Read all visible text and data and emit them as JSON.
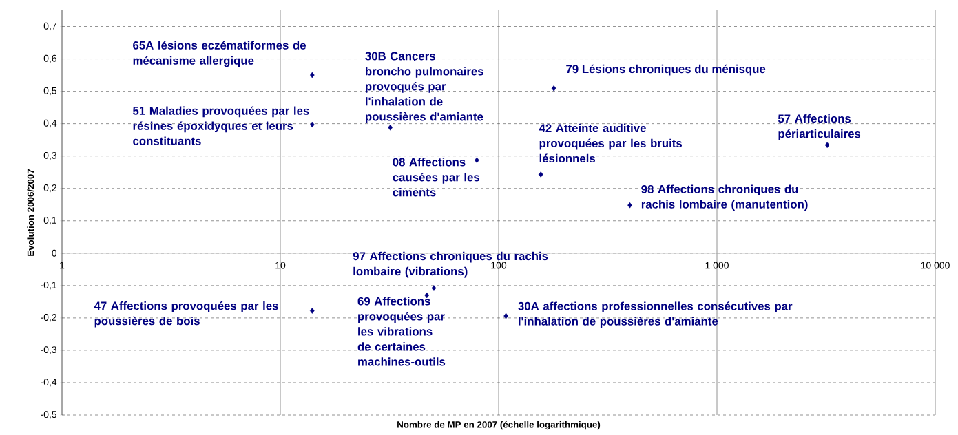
{
  "chart_data": {
    "type": "scatter",
    "xlabel": "Nombre de MP en 2007 (échelle logarithmique)",
    "ylabel": "Evolution 2006/2007",
    "x": [
      14,
      14,
      31.9,
      179,
      79.5,
      156,
      399,
      3200,
      14,
      50.5,
      46.9,
      108
    ],
    "values": [
      0.55,
      0.397,
      0.388,
      0.509,
      0.287,
      0.243,
      0.148,
      0.334,
      -0.178,
      -0.108,
      -0.13,
      -0.194
    ],
    "color": "#000080",
    "marker": "diamond",
    "log": "x",
    "grid": true,
    "xlim": [
      1,
      10000
    ],
    "ylim": [
      -0.5,
      0.75
    ],
    "xticks": [
      1,
      10,
      100,
      {
        "value": 1000,
        "label": "1 000"
      },
      {
        "value": 10000,
        "label": "10 000"
      }
    ],
    "yticks": [
      {
        "value": -0.5,
        "label": "-0,5"
      },
      {
        "value": -0.4,
        "label": "-0,4"
      },
      {
        "value": -0.3,
        "label": "-0,3"
      },
      {
        "value": -0.2,
        "label": "-0,2"
      },
      {
        "value": -0.1,
        "label": "-0,1"
      },
      0,
      {
        "value": 0.1,
        "label": "0,1"
      },
      {
        "value": 0.2,
        "label": "0,2"
      },
      {
        "value": 0.3,
        "label": "0,3"
      },
      {
        "value": 0.4,
        "label": "0,4"
      },
      {
        "value": 0.5,
        "label": "0,5"
      },
      {
        "value": 0.6,
        "label": "0,6"
      },
      {
        "value": 0.7,
        "label": "0,7"
      }
    ],
    "annotations": [
      {
        "text": "65A lésions eczématiformes de mécanisme allergique",
        "x": 14,
        "y": 0.55
      },
      {
        "text": "51  Maladies provoquées par les résines époxidyques et leurs constituants",
        "x": 14,
        "y": 0.397
      },
      {
        "text": "30B  Cancers broncho pulmonaires provoqués par l'inhalation de poussières d'amiante",
        "x": 31.9,
        "y": 0.388
      },
      {
        "text": "79  Lésions chroniques du ménisque",
        "x": 179,
        "y": 0.509
      },
      {
        "text": "08  Affections causées par les ciments",
        "x": 79.5,
        "y": 0.287
      },
      {
        "text": "42  Atteinte auditive provoquées par les bruits lésionnels",
        "x": 156,
        "y": 0.243
      },
      {
        "text": "98 Affections chroniques du rachis lombaire (manutention)",
        "x": 399,
        "y": 0.148
      },
      {
        "text": "57 Affections périarticulaires",
        "x": 3200,
        "y": 0.334
      },
      {
        "text": "47  Affections provoquées par les poussières de bois",
        "x": 14,
        "y": -0.178
      },
      {
        "text": "97  Affections chroniques du rachis lombaire (vibrations)",
        "x": 50.5,
        "y": -0.108
      },
      {
        "text": "69  Affections provoquées par les vibrations de certaines machines-outils",
        "x": 46.9,
        "y": -0.13
      },
      {
        "text": "30A affections professionnelles consécutives par l'inhalation de poussières d'amiante",
        "x": 108,
        "y": -0.194
      }
    ]
  }
}
